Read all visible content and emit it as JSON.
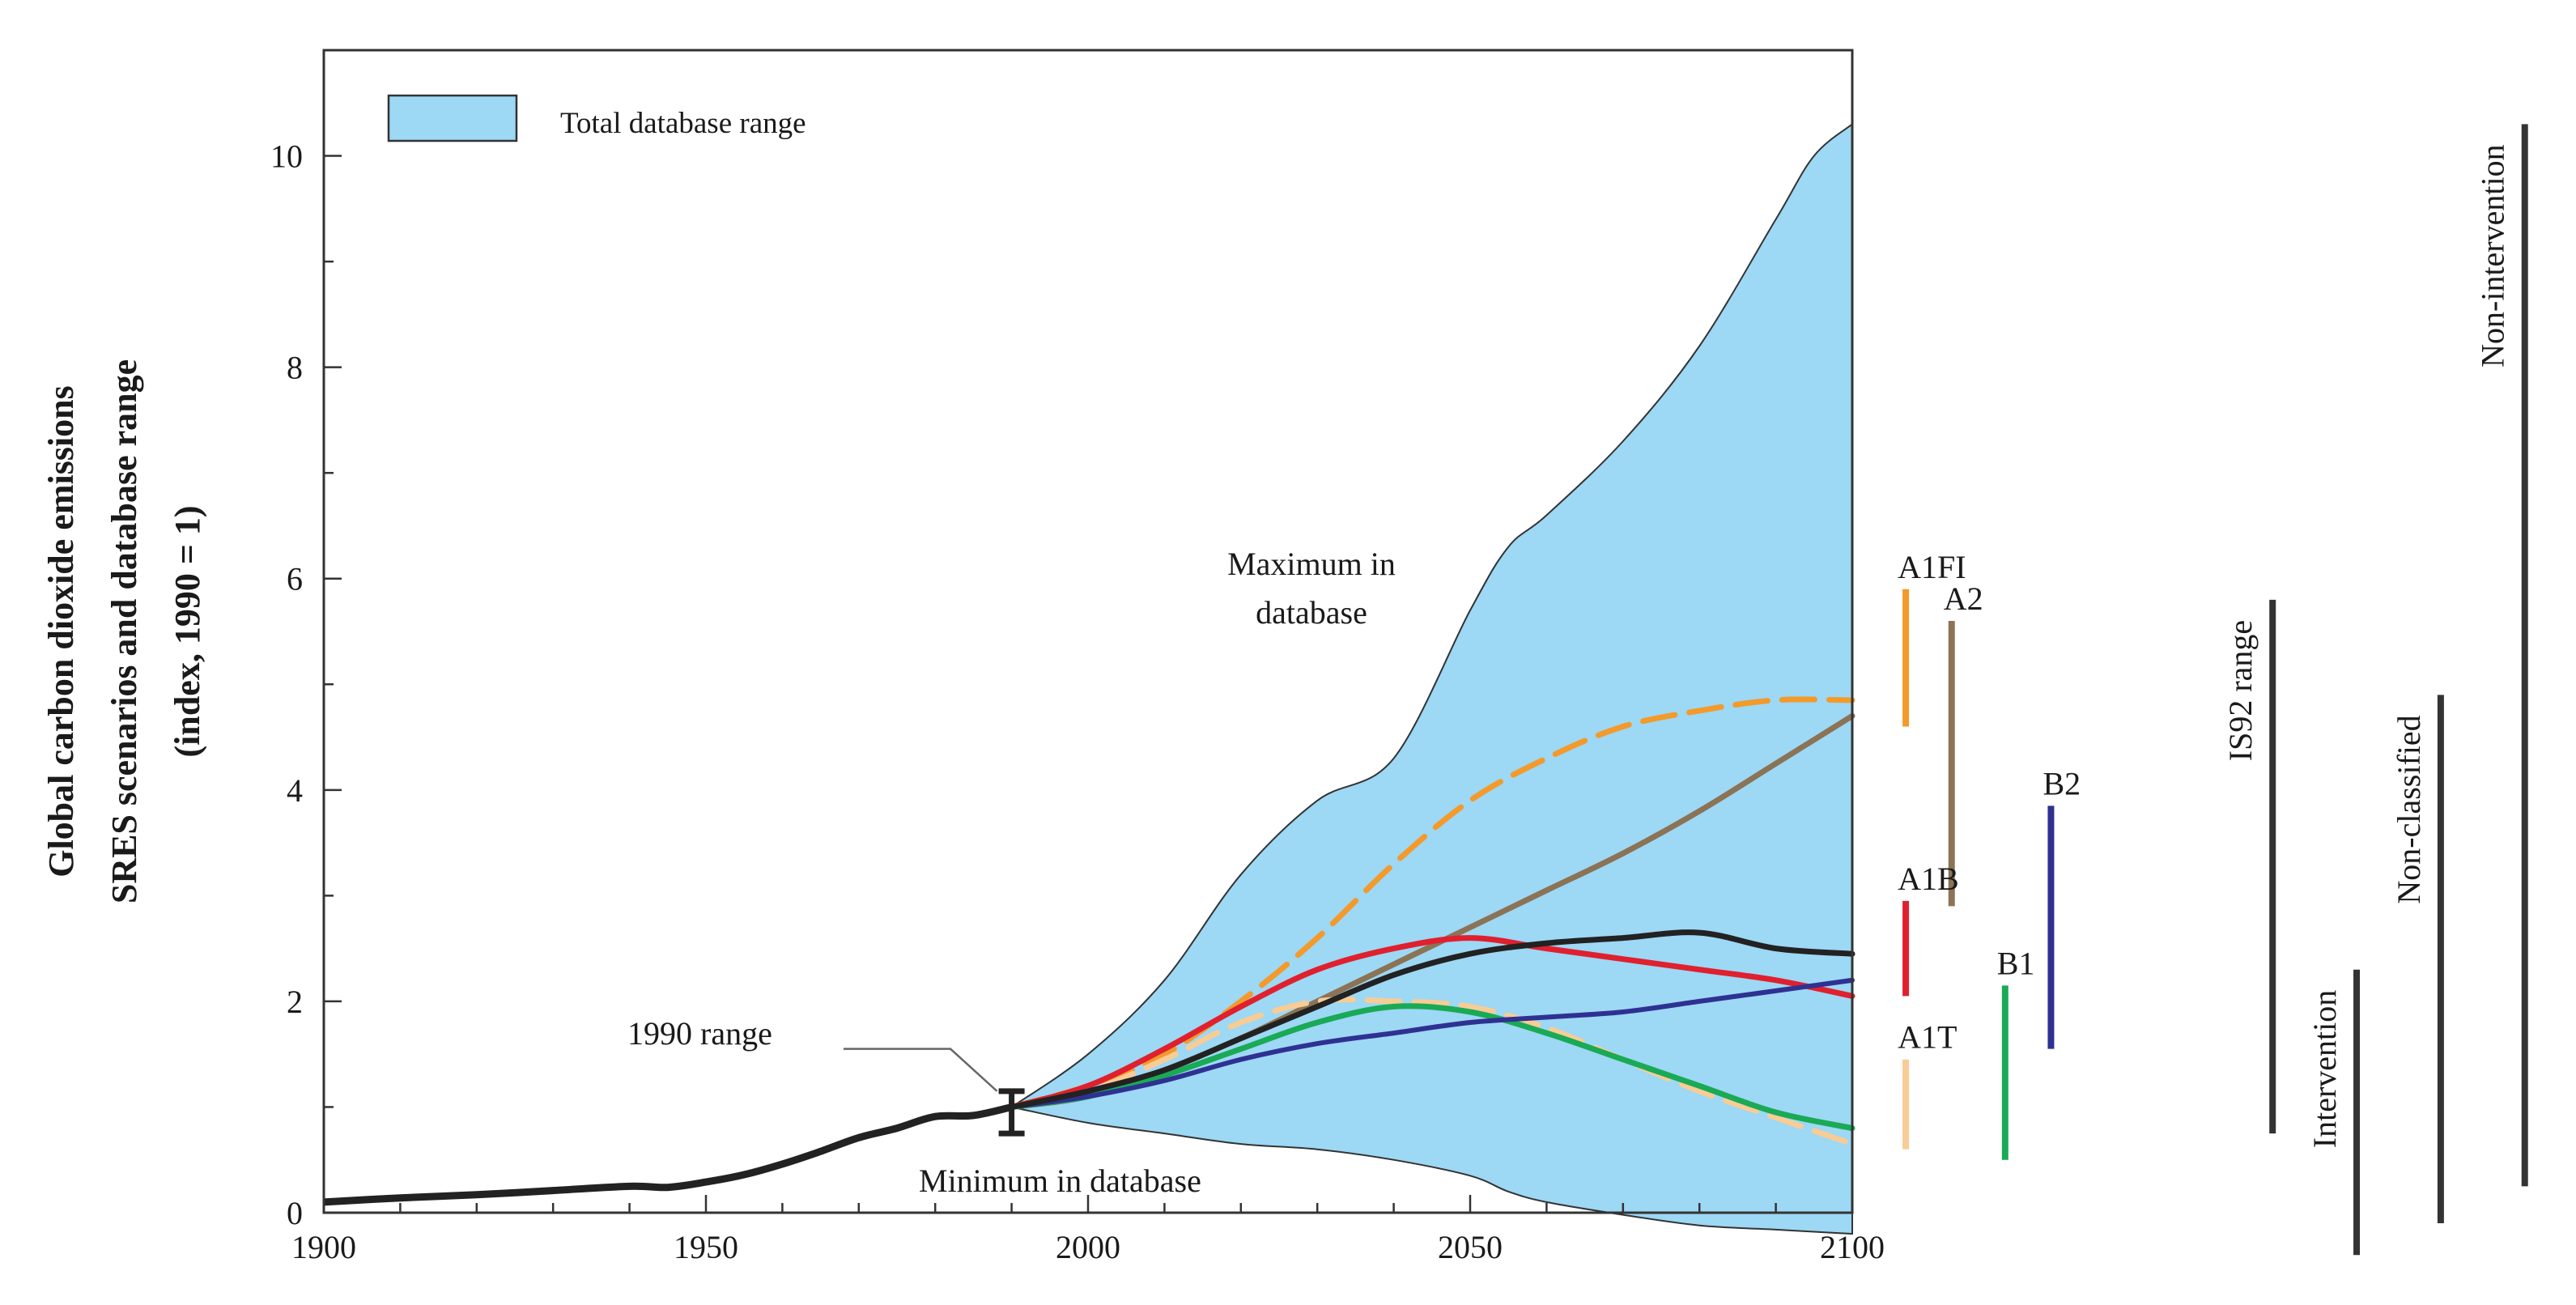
{
  "chart_data": {
    "type": "line",
    "title": "",
    "xlabel": "",
    "ylabel_lines": [
      "Global carbon dioxide emissions",
      "SRES scenarios and database range",
      "(index, 1990 = 1)"
    ],
    "xlim": [
      1900,
      2100
    ],
    "ylim": [
      0,
      11
    ],
    "x_ticks": [
      1900,
      1950,
      2000,
      2050,
      2100
    ],
    "x_tick_labels": [
      "1900",
      "1950",
      "2000",
      "2050",
      "2100"
    ],
    "y_ticks": [
      0,
      2,
      4,
      6,
      8,
      10
    ],
    "y_tick_labels": [
      "0",
      "2",
      "4",
      "6",
      "8",
      "10"
    ],
    "grid": false,
    "legend": {
      "position": "top-left",
      "entries": [
        {
          "label": "Total database range",
          "color": "#9dd8f5"
        }
      ]
    },
    "colors": {
      "range_fill": "#9dd8f5",
      "A1FI": "#f39a2b",
      "A2": "#8b7355",
      "A1B": "#e0202e",
      "A1T": "#f8cc95",
      "B1": "#1aaa55",
      "B2": "#2e3192",
      "historical": "#222222"
    },
    "annotations": {
      "maximum": [
        "Maximum in",
        "database"
      ],
      "minimum": "Minimum in database",
      "range_1990": "1990 range"
    },
    "historical": {
      "x": [
        1900,
        1910,
        1920,
        1930,
        1940,
        1945,
        1950,
        1955,
        1960,
        1965,
        1970,
        1975,
        1980,
        1985,
        1990
      ],
      "y": [
        0.1,
        0.14,
        0.17,
        0.21,
        0.25,
        0.24,
        0.29,
        0.36,
        0.46,
        0.58,
        0.71,
        0.8,
        0.91,
        0.92,
        1.0
      ]
    },
    "range_1990": {
      "x": 1990,
      "low": 0.75,
      "high": 1.15
    },
    "database_range": {
      "x": [
        1990,
        2000,
        2010,
        2020,
        2030,
        2040,
        2050,
        2055,
        2060,
        2070,
        2080,
        2090,
        2095,
        2100
      ],
      "max": [
        1.0,
        1.5,
        2.2,
        3.2,
        3.9,
        4.3,
        5.7,
        6.3,
        6.6,
        7.3,
        8.2,
        9.4,
        10.0,
        10.3
      ],
      "min": [
        1.0,
        0.85,
        0.75,
        0.65,
        0.6,
        0.5,
        0.35,
        0.2,
        0.1,
        -0.02,
        -0.12,
        -0.16,
        -0.18,
        -0.2
      ]
    },
    "series": [
      {
        "name": "A1FI",
        "x": [
          1990,
          2000,
          2010,
          2020,
          2030,
          2040,
          2050,
          2060,
          2070,
          2080,
          2090,
          2100
        ],
        "values": [
          1.0,
          1.2,
          1.5,
          2.0,
          2.6,
          3.3,
          3.9,
          4.3,
          4.6,
          4.75,
          4.85,
          4.85
        ]
      },
      {
        "name": "A2",
        "x": [
          1990,
          2000,
          2010,
          2020,
          2030,
          2040,
          2050,
          2060,
          2070,
          2080,
          2090,
          2100
        ],
        "values": [
          1.0,
          1.1,
          1.35,
          1.65,
          2.0,
          2.35,
          2.7,
          3.05,
          3.4,
          3.8,
          4.25,
          4.7
        ]
      },
      {
        "name": "A1B",
        "x": [
          1990,
          2000,
          2010,
          2020,
          2030,
          2040,
          2050,
          2060,
          2070,
          2080,
          2090,
          2100
        ],
        "values": [
          1.0,
          1.2,
          1.55,
          1.95,
          2.3,
          2.5,
          2.6,
          2.5,
          2.4,
          2.3,
          2.2,
          2.05
        ]
      },
      {
        "name": "A1T",
        "x": [
          1990,
          2000,
          2010,
          2020,
          2030,
          2040,
          2050,
          2060,
          2070,
          2080,
          2090,
          2100
        ],
        "values": [
          1.0,
          1.15,
          1.45,
          1.8,
          2.0,
          2.0,
          1.95,
          1.75,
          1.45,
          1.15,
          0.9,
          0.65
        ]
      },
      {
        "name": "B1",
        "x": [
          1990,
          2000,
          2010,
          2020,
          2030,
          2040,
          2050,
          2060,
          2070,
          2080,
          2090,
          2100
        ],
        "values": [
          1.0,
          1.1,
          1.3,
          1.55,
          1.8,
          1.95,
          1.9,
          1.7,
          1.45,
          1.2,
          0.95,
          0.8
        ]
      },
      {
        "name": "B2",
        "x": [
          1990,
          2000,
          2010,
          2020,
          2030,
          2040,
          2050,
          2060,
          2070,
          2080,
          2090,
          2100
        ],
        "values": [
          1.0,
          1.1,
          1.25,
          1.45,
          1.6,
          1.7,
          1.8,
          1.85,
          1.9,
          2.0,
          2.1,
          2.2
        ]
      },
      {
        "name": "",
        "x": [
          1990,
          2000,
          2010,
          2020,
          2030,
          2040,
          2050,
          2060,
          2070,
          2080,
          2090,
          2100
        ],
        "values": [
          1.0,
          1.15,
          1.35,
          1.65,
          1.95,
          2.25,
          2.45,
          2.55,
          2.6,
          2.65,
          2.5,
          2.45
        ]
      }
    ],
    "scenario_bars": [
      {
        "label": "A1FI",
        "x": 2107,
        "low": 4.6,
        "high": 5.9,
        "color": "#f39a2b"
      },
      {
        "label": "A2",
        "x": 2113,
        "low": 2.9,
        "high": 5.6,
        "color": "#8b7355"
      },
      {
        "label": "A1B",
        "x": 2107,
        "low": 2.05,
        "high": 2.95,
        "color": "#e0202e"
      },
      {
        "label": "A1T",
        "x": 2107,
        "low": 0.6,
        "high": 1.45,
        "color": "#f8cc95"
      },
      {
        "label": "B1",
        "x": 2120,
        "low": 0.5,
        "high": 2.15,
        "color": "#1aaa55"
      },
      {
        "label": "B2",
        "x": 2126,
        "low": 1.55,
        "high": 3.85,
        "color": "#2e3192"
      }
    ],
    "database_bars": [
      {
        "label": "IS92 range",
        "x": 2155,
        "low": 0.75,
        "high": 5.8
      },
      {
        "label": "Intervention",
        "x": 2166,
        "low": -0.4,
        "high": 2.3
      },
      {
        "label": "Non-classified",
        "x": 2177,
        "low": -0.1,
        "high": 4.9
      },
      {
        "label": "Non-intervention",
        "x": 2188,
        "low": 0.25,
        "high": 10.3
      }
    ]
  }
}
